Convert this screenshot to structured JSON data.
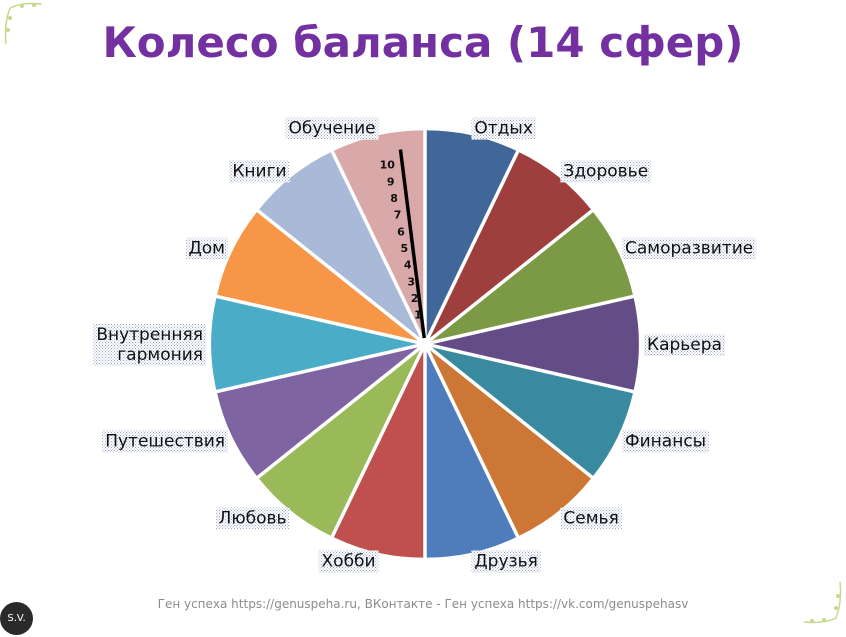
{
  "page": {
    "footer_text": "Ген успеха https://genuspeha.ru,  ВКонтакте -  Ген успеха https://vk.com/genuspehasv",
    "badge_text": "S.V."
  },
  "chart_data": {
    "type": "pie",
    "title": "Колесо баланса (14 сфер)",
    "categories": [
      "Отдых",
      "Здоровье",
      "Саморазвитие",
      "Карьера",
      "Финансы",
      "Семья",
      "Друзья",
      "Хобби",
      "Любовь",
      "Путешествия",
      "Внутренняя гармония",
      "Дом",
      "Книги",
      "Обучение"
    ],
    "values": [
      1,
      1,
      1,
      1,
      1,
      1,
      1,
      1,
      1,
      1,
      1,
      1,
      1,
      1
    ],
    "colors": [
      "#41679a",
      "#9e3f3e",
      "#7c9a45",
      "#644d86",
      "#398a9e",
      "#cc7735",
      "#4f7dbc",
      "#bf504d",
      "#9aba59",
      "#7f64a2",
      "#4aacc6",
      "#f69646",
      "#a9b9d8",
      "#d8a9a8"
    ],
    "label_background": "dotted",
    "scale": {
      "segment": "Обучение",
      "ticks": [
        "1",
        "2",
        "3",
        "4",
        "5",
        "6",
        "7",
        "8",
        "9",
        "10"
      ]
    },
    "legend": "none"
  }
}
